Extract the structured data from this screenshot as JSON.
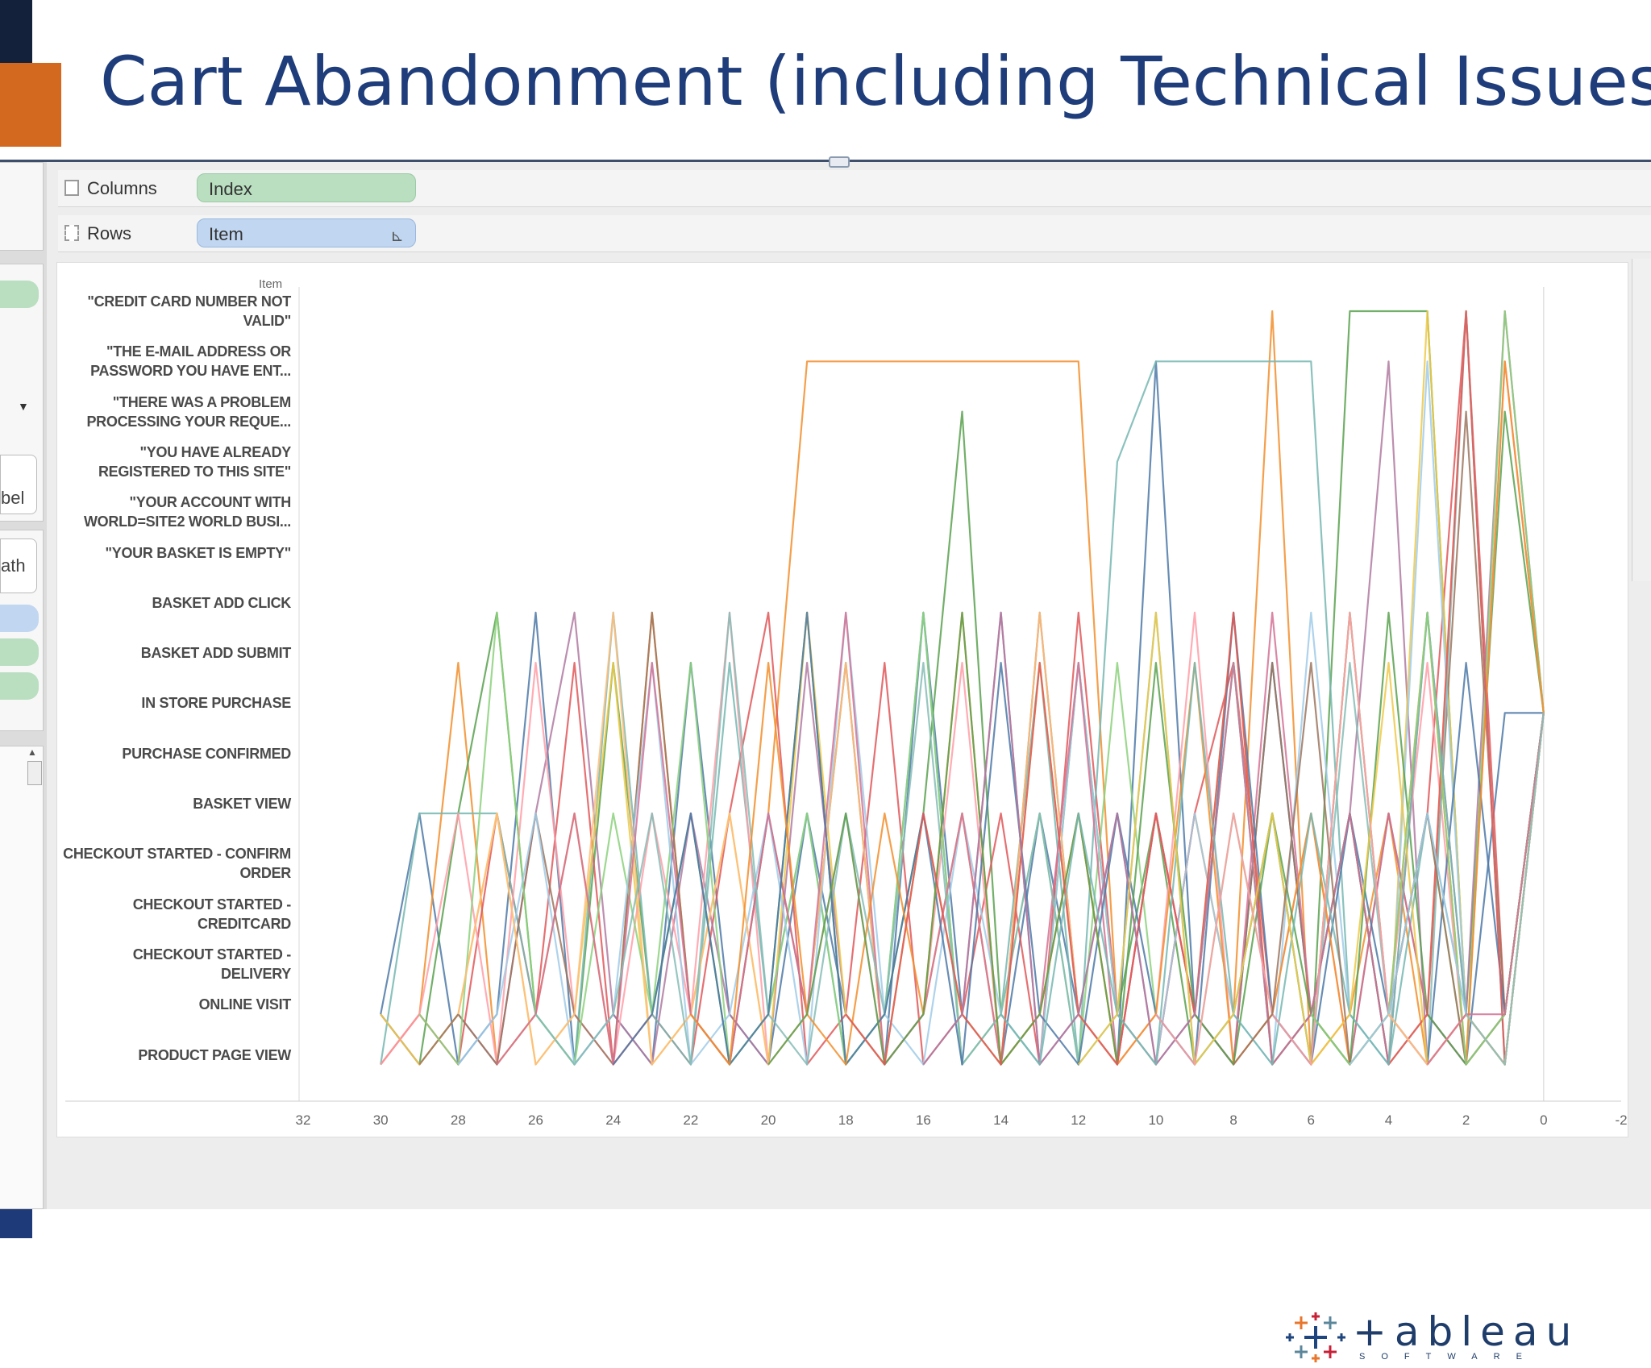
{
  "slide": {
    "title": "Cart Abandonment (including Technical Issues)"
  },
  "shelves": {
    "columns_label": "Columns",
    "columns_pill": "Index",
    "rows_label": "Rows",
    "rows_pill": "Item"
  },
  "left_panel": {
    "fragment_label": "bel",
    "fragment_path": "ath"
  },
  "chart_data": {
    "type": "line",
    "row_header": "Item",
    "rows": [
      "\"CREDIT CARD NUMBER NOT VALID\"",
      "\"THE E-MAIL ADDRESS OR PASSWORD YOU HAVE ENT...",
      "\"THERE WAS A PROBLEM PROCESSING YOUR REQUE...",
      "\"YOU HAVE ALREADY REGISTERED TO THIS SITE\"",
      "\"YOUR ACCOUNT WITH WORLD=SITE2 WORLD BUSI...",
      "\"YOUR BASKET IS EMPTY\"",
      "BASKET ADD CLICK",
      "BASKET ADD SUBMIT",
      "IN STORE PURCHASE",
      "PURCHASE CONFIRMED",
      "BASKET VIEW",
      "CHECKOUT STARTED - CONFIRM ORDER",
      "CHECKOUT STARTED - CREDITCARD",
      "CHECKOUT STARTED - DELIVERY",
      "ONLINE VISIT",
      "PRODUCT PAGE VIEW"
    ],
    "x_ticks": [
      "32",
      "30",
      "28",
      "26",
      "24",
      "22",
      "20",
      "18",
      "16",
      "14",
      "12",
      "10",
      "8",
      "6",
      "4",
      "2",
      "0",
      "-2"
    ],
    "xlim": [
      32,
      -2
    ],
    "series_colors": [
      "#4e79a7",
      "#f28e2b",
      "#59a14f",
      "#e15759",
      "#b07aa1",
      "#76b7b2",
      "#edc948",
      "#ff9da7",
      "#9c755f",
      "#8cd17d",
      "#a0cbe8",
      "#ffbe7d",
      "#d37295",
      "#86bcb6"
    ],
    "series": [
      {
        "x": [
          30,
          29,
          28,
          27,
          26,
          25,
          24,
          23,
          22,
          21,
          20,
          19,
          18,
          17,
          16,
          15,
          14,
          13,
          12,
          11,
          10,
          9,
          8,
          7,
          6,
          5,
          4,
          3,
          2,
          1,
          0
        ],
        "y": [
          14,
          10,
          15,
          14,
          6,
          15,
          14,
          15,
          7,
          14,
          15,
          10,
          14,
          15,
          6,
          14,
          15,
          10,
          14,
          15,
          1,
          14,
          15,
          7,
          14,
          10,
          15,
          14,
          15,
          8,
          8
        ]
      },
      {
        "x": [
          30,
          29,
          28,
          27,
          26,
          25,
          24,
          23,
          22,
          21,
          20,
          19,
          18,
          17,
          16,
          15,
          14,
          13,
          12,
          11,
          10,
          9,
          8,
          7,
          6,
          5,
          4,
          3,
          2,
          1,
          0
        ],
        "y": [
          15,
          14,
          7,
          15,
          14,
          10,
          15,
          6,
          14,
          15,
          10,
          1,
          1,
          1,
          1,
          1,
          1,
          1,
          1,
          14,
          15,
          10,
          14,
          0,
          15,
          14,
          10,
          15,
          14,
          15,
          8
        ]
      },
      {
        "x": [
          30,
          29,
          28,
          27,
          26,
          25,
          24,
          23,
          22,
          21,
          20,
          19,
          18,
          17,
          16,
          15,
          14,
          13,
          12,
          11,
          10,
          9,
          8,
          7,
          6,
          5,
          4,
          3,
          2,
          1,
          0
        ],
        "y": [
          14,
          15,
          10,
          6,
          14,
          15,
          7,
          14,
          10,
          15,
          14,
          6,
          15,
          14,
          10,
          2,
          14,
          15,
          7,
          14,
          10,
          15,
          14,
          10,
          15,
          0,
          0,
          0,
          14,
          2,
          8
        ]
      },
      {
        "x": [
          30,
          29,
          28,
          27,
          26,
          25,
          24,
          23,
          22,
          21,
          20,
          19,
          18,
          17,
          16,
          15,
          14,
          13,
          12,
          11,
          10,
          9,
          8,
          7,
          6,
          5,
          4,
          3,
          2,
          1,
          0
        ],
        "y": [
          15,
          14,
          15,
          10,
          14,
          7,
          15,
          14,
          15,
          10,
          6,
          15,
          14,
          7,
          15,
          14,
          10,
          15,
          6,
          14,
          15,
          10,
          7,
          14,
          15,
          6,
          14,
          10,
          0,
          14,
          8
        ]
      },
      {
        "x": [
          30,
          29,
          28,
          27,
          26,
          25,
          24,
          23,
          22,
          21,
          20,
          19,
          18,
          17,
          16,
          15,
          14,
          13,
          12,
          11,
          10,
          9,
          8,
          7,
          6,
          5,
          4,
          3,
          2,
          1,
          0
        ],
        "y": [
          14,
          15,
          14,
          15,
          10,
          6,
          14,
          15,
          10,
          14,
          15,
          7,
          14,
          15,
          10,
          14,
          6,
          15,
          14,
          10,
          15,
          14,
          7,
          15,
          14,
          10,
          1,
          15,
          14,
          0,
          8
        ]
      },
      {
        "x": [
          30,
          29,
          28,
          27,
          26,
          25,
          24,
          23,
          22,
          21,
          20,
          19,
          18,
          17,
          16,
          15,
          14,
          13,
          12,
          11,
          10,
          9,
          8,
          7,
          6,
          5,
          4,
          3,
          2,
          1,
          0
        ],
        "y": [
          15,
          10,
          10,
          10,
          14,
          15,
          6,
          14,
          15,
          7,
          14,
          10,
          15,
          14,
          6,
          15,
          14,
          7,
          15,
          3,
          1,
          1,
          1,
          1,
          1,
          14,
          15,
          10,
          14,
          15,
          8
        ]
      },
      {
        "x": [
          30,
          29,
          28,
          27,
          26,
          25,
          24,
          23,
          22,
          21,
          20,
          19,
          18,
          17,
          16,
          15,
          14,
          13,
          12,
          11,
          10,
          9,
          8,
          7,
          6,
          5,
          4,
          3,
          2,
          1,
          0
        ],
        "y": [
          14,
          15,
          14,
          10,
          15,
          14,
          7,
          15,
          14,
          10,
          15,
          6,
          14,
          15,
          10,
          14,
          15,
          7,
          14,
          15,
          10,
          14,
          6,
          15,
          14,
          10,
          15,
          0,
          14,
          15,
          8
        ]
      },
      {
        "x": [
          30,
          29,
          28,
          27,
          26,
          25,
          24,
          23,
          22,
          21,
          20,
          19,
          18,
          17,
          16,
          15,
          14,
          13,
          12,
          11,
          10,
          9,
          8,
          7,
          6,
          5,
          4,
          3,
          2,
          1,
          0
        ],
        "y": [
          15,
          14,
          10,
          15,
          7,
          14,
          15,
          10,
          14,
          6,
          15,
          14,
          10,
          15,
          14,
          7,
          15,
          14,
          10,
          15,
          14,
          6,
          15,
          14,
          10,
          15,
          14,
          7,
          15,
          1,
          8
        ]
      },
      {
        "x": [
          29,
          28,
          27,
          26,
          25,
          24,
          23,
          22,
          21,
          20,
          19,
          18,
          17,
          16,
          15,
          14,
          13,
          12,
          11,
          10,
          9,
          8,
          7,
          6,
          5,
          4,
          3,
          2,
          1,
          0
        ],
        "y": [
          15,
          14,
          15,
          10,
          14,
          15,
          6,
          14,
          15,
          10,
          14,
          7,
          15,
          14,
          10,
          15,
          6,
          14,
          15,
          10,
          14,
          15,
          7,
          14,
          15,
          10,
          14,
          2,
          14,
          8
        ]
      },
      {
        "x": [
          29,
          28,
          27,
          26,
          25,
          24,
          23,
          22,
          21,
          20,
          19,
          18,
          17,
          16,
          15,
          14,
          13,
          12,
          11,
          10,
          9,
          8,
          7,
          6,
          5,
          4,
          3,
          2,
          1,
          0
        ],
        "y": [
          14,
          15,
          6,
          14,
          15,
          10,
          14,
          7,
          15,
          14,
          10,
          15,
          14,
          6,
          15,
          14,
          10,
          15,
          7,
          14,
          15,
          10,
          14,
          15,
          6,
          14,
          10,
          15,
          0,
          8
        ]
      },
      {
        "x": [
          28,
          27,
          26,
          25,
          24,
          23,
          22,
          21,
          20,
          19,
          18,
          17,
          16,
          15,
          14,
          13,
          12,
          11,
          10,
          9,
          8,
          7,
          6,
          5,
          4,
          3,
          2,
          1,
          0
        ],
        "y": [
          15,
          14,
          10,
          15,
          14,
          7,
          15,
          14,
          10,
          15,
          6,
          14,
          15,
          10,
          14,
          15,
          7,
          14,
          15,
          10,
          14,
          15,
          6,
          14,
          15,
          1,
          14,
          15,
          8
        ]
      },
      {
        "x": [
          28,
          27,
          26,
          25,
          24,
          23,
          22,
          21,
          20,
          19,
          18,
          17,
          16,
          15,
          14,
          13,
          12,
          11,
          10,
          9,
          8,
          7,
          6,
          5,
          4,
          3,
          2,
          1,
          0
        ],
        "y": [
          14,
          10,
          15,
          14,
          6,
          15,
          14,
          10,
          15,
          14,
          7,
          15,
          14,
          10,
          15,
          6,
          14,
          15,
          10,
          14,
          7,
          15,
          14,
          10,
          15,
          14,
          0,
          15,
          8
        ]
      },
      {
        "x": [
          27,
          26,
          25,
          24,
          23,
          22,
          21,
          20,
          19,
          18,
          17,
          16,
          15,
          14,
          13,
          12,
          11,
          10,
          9,
          8,
          7,
          6,
          5,
          4,
          3,
          2,
          1,
          0
        ],
        "y": [
          15,
          14,
          10,
          15,
          7,
          14,
          15,
          10,
          14,
          6,
          15,
          14,
          10,
          15,
          14,
          7,
          15,
          10,
          14,
          15,
          6,
          14,
          15,
          10,
          14,
          15,
          14,
          8
        ]
      },
      {
        "x": [
          26,
          25,
          24,
          23,
          22,
          21,
          20,
          19,
          18,
          17,
          16,
          15,
          14,
          13,
          12,
          11,
          10,
          9,
          8,
          7,
          6,
          5,
          4,
          3,
          2,
          1,
          0
        ],
        "y": [
          14,
          15,
          14,
          10,
          15,
          6,
          14,
          15,
          10,
          14,
          7,
          15,
          14,
          10,
          15,
          14,
          6,
          15,
          14,
          10,
          15,
          7,
          14,
          15,
          0,
          15,
          8
        ]
      },
      {
        "x": [
          24,
          23,
          22,
          21,
          20,
          19,
          18,
          17,
          16,
          15,
          14,
          13,
          12,
          11,
          10,
          9,
          8,
          7,
          6,
          5,
          4,
          3,
          2,
          1,
          0
        ],
        "y": [
          15,
          14,
          10,
          15,
          14,
          6,
          15,
          14,
          10,
          15,
          7,
          14,
          15,
          10,
          14,
          15,
          6,
          14,
          15,
          10,
          14,
          15,
          7,
          14,
          8
        ]
      },
      {
        "x": [
          22,
          21,
          20,
          19,
          18,
          17,
          16,
          15,
          14,
          13,
          12,
          11,
          10,
          9,
          8,
          7,
          6,
          5,
          4,
          3,
          2,
          1,
          0
        ],
        "y": [
          14,
          15,
          7,
          14,
          15,
          10,
          14,
          6,
          15,
          14,
          10,
          15,
          14,
          7,
          15,
          14,
          10,
          15,
          14,
          6,
          15,
          1,
          8
        ]
      },
      {
        "x": [
          20,
          19,
          18,
          17,
          16,
          15,
          14,
          13,
          12,
          11,
          10,
          9,
          8,
          7,
          6,
          5,
          4,
          3,
          2,
          1,
          0
        ],
        "y": [
          15,
          14,
          10,
          15,
          14,
          6,
          15,
          14,
          10,
          15,
          7,
          14,
          15,
          10,
          14,
          15,
          6,
          14,
          15,
          14,
          8
        ]
      },
      {
        "x": [
          18,
          17,
          16,
          15,
          14,
          13,
          12,
          11,
          10,
          9,
          8,
          7,
          6,
          5,
          4,
          3,
          2,
          1,
          0
        ],
        "y": [
          14,
          15,
          10,
          14,
          15,
          7,
          14,
          15,
          10,
          14,
          6,
          15,
          14,
          10,
          15,
          14,
          0,
          15,
          8
        ]
      },
      {
        "x": [
          16,
          15,
          14,
          13,
          12,
          11,
          10,
          9,
          8,
          7,
          6,
          5,
          4,
          3,
          2,
          1,
          0
        ],
        "y": [
          15,
          14,
          6,
          15,
          14,
          10,
          15,
          14,
          7,
          15,
          14,
          10,
          15,
          6,
          14,
          15,
          8
        ]
      },
      {
        "x": [
          14,
          13,
          12,
          11,
          10,
          9,
          8,
          7,
          6,
          5,
          4,
          3,
          2,
          1,
          0
        ],
        "y": [
          14,
          15,
          10,
          14,
          15,
          7,
          14,
          15,
          10,
          14,
          15,
          6,
          14,
          15,
          8
        ]
      },
      {
        "x": [
          12,
          11,
          10,
          9,
          8,
          7,
          6,
          5,
          4,
          3,
          2,
          1,
          0
        ],
        "y": [
          15,
          14,
          6,
          15,
          14,
          10,
          15,
          14,
          7,
          15,
          14,
          15,
          8
        ]
      },
      {
        "x": [
          10,
          9,
          8,
          7,
          6,
          5,
          4,
          3,
          2,
          1,
          0
        ],
        "y": [
          14,
          15,
          10,
          14,
          15,
          6,
          14,
          15,
          14,
          15,
          8
        ]
      },
      {
        "x": [
          8,
          7,
          6,
          5,
          4,
          3,
          2,
          1,
          0
        ],
        "y": [
          15,
          14,
          7,
          15,
          14,
          10,
          15,
          14,
          8
        ]
      },
      {
        "x": [
          6,
          5,
          4,
          3,
          2,
          1,
          0
        ],
        "y": [
          14,
          15,
          14,
          6,
          15,
          14,
          8
        ]
      },
      {
        "x": [
          5,
          4,
          3,
          2,
          1,
          0
        ],
        "y": [
          15,
          14,
          10,
          14,
          15,
          8
        ]
      },
      {
        "x": [
          4,
          3,
          2,
          1,
          0
        ],
        "y": [
          14,
          15,
          14,
          15,
          8
        ]
      },
      {
        "x": [
          3,
          2,
          1,
          0
        ],
        "y": [
          15,
          14,
          14,
          8
        ]
      },
      {
        "x": [
          2,
          1,
          0
        ],
        "y": [
          14,
          15,
          8
        ]
      }
    ]
  },
  "logo": {
    "word": "+ableau",
    "sub": "SOFTWARE",
    "mark_color_1": "#e8762d",
    "mark_color_2": "#5b879b",
    "mark_color_3": "#c72037",
    "mark_color_4": "#1f457e"
  }
}
